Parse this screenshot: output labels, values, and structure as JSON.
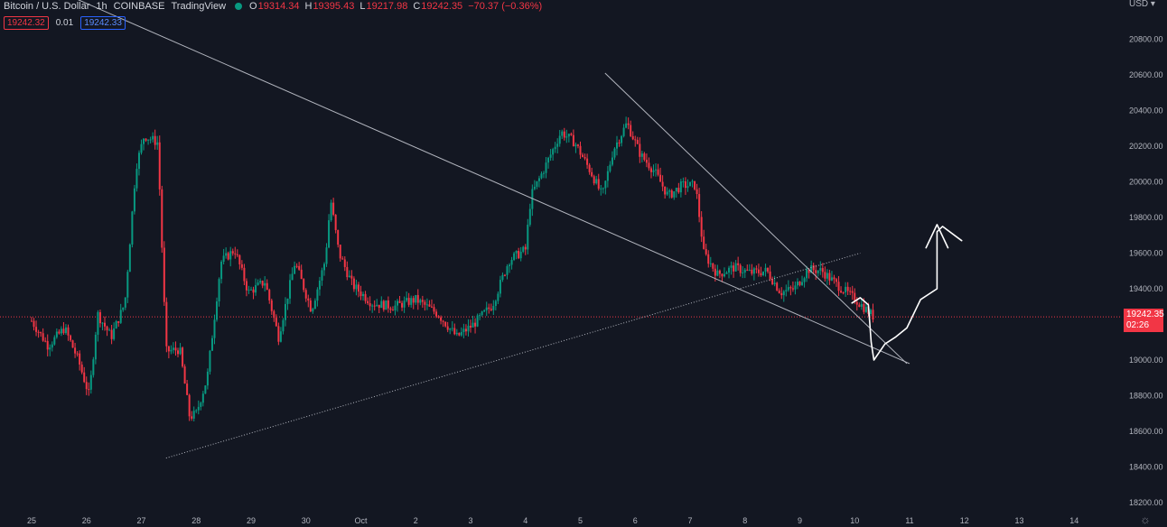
{
  "legend": {
    "symbol": "Bitcoin / U.S. Dollar",
    "interval": "1h",
    "exchange": "COINBASE",
    "source": "TradingView",
    "open_key": "O",
    "open": "19314.34",
    "high_key": "H",
    "high": "19395.43",
    "low_key": "L",
    "low": "19217.98",
    "close_key": "C",
    "close": "19242.35",
    "change": "−70.37 (−0.36%)"
  },
  "quote": {
    "sell": "19242.32",
    "spread": "0.01",
    "buy": "19242.33"
  },
  "currency_label": "USD ▾",
  "last_price": {
    "price": "19242.35",
    "countdown": "02:26"
  },
  "settings_icon_glyph": "☼",
  "colors": {
    "background": "#131722",
    "up": "#089981",
    "down": "#f23645",
    "trendline": "#b2b5be",
    "drawing": "#ffffff",
    "axis_text": "#b2b5be"
  },
  "chart_data": {
    "type": "candlestick",
    "title": "",
    "xlabel": "",
    "ylabel": "",
    "ylim": [
      18200,
      20980
    ],
    "y_ticks": [
      "18200.00",
      "18400.00",
      "18600.00",
      "18800.00",
      "19000.00",
      "19200.00",
      "19400.00",
      "19600.00",
      "19800.00",
      "20000.00",
      "20200.00",
      "20400.00",
      "20600.00",
      "20800.00"
    ],
    "x_ticks": [
      "25",
      "26",
      "27",
      "28",
      "29",
      "30",
      "Oct",
      "2",
      "3",
      "4",
      "5",
      "6",
      "7",
      "8",
      "9",
      "10",
      "11",
      "12",
      "13",
      "14"
    ],
    "grid": false,
    "last_price_line": 19242.35,
    "price_path": [
      {
        "day": 25.0,
        "price": 19220
      },
      {
        "day": 25.3,
        "price": 19080
      },
      {
        "day": 25.6,
        "price": 19180
      },
      {
        "day": 25.85,
        "price": 19000
      },
      {
        "day": 26.05,
        "price": 18800
      },
      {
        "day": 26.2,
        "price": 19260
      },
      {
        "day": 26.45,
        "price": 19130
      },
      {
        "day": 26.7,
        "price": 19320
      },
      {
        "day": 26.9,
        "price": 20080
      },
      {
        "day": 27.05,
        "price": 20260
      },
      {
        "day": 27.3,
        "price": 20220
      },
      {
        "day": 27.45,
        "price": 19050
      },
      {
        "day": 27.7,
        "price": 19060
      },
      {
        "day": 27.88,
        "price": 18680
      },
      {
        "day": 28.0,
        "price": 18700
      },
      {
        "day": 28.2,
        "price": 18900
      },
      {
        "day": 28.45,
        "price": 19550
      },
      {
        "day": 28.7,
        "price": 19620
      },
      {
        "day": 28.95,
        "price": 19380
      },
      {
        "day": 29.25,
        "price": 19440
      },
      {
        "day": 29.5,
        "price": 19130
      },
      {
        "day": 29.8,
        "price": 19550
      },
      {
        "day": 30.1,
        "price": 19280
      },
      {
        "day": 30.35,
        "price": 19560
      },
      {
        "day": 30.45,
        "price": 19900
      },
      {
        "day": 30.6,
        "price": 19600
      },
      {
        "day": 30.85,
        "price": 19420
      },
      {
        "day": 31.2,
        "price": 19320
      },
      {
        "day": 31.6,
        "price": 19300
      },
      {
        "day": 32.0,
        "price": 19340
      },
      {
        "day": 32.4,
        "price": 19260
      },
      {
        "day": 32.75,
        "price": 19130
      },
      {
        "day": 33.05,
        "price": 19200
      },
      {
        "day": 33.4,
        "price": 19310
      },
      {
        "day": 33.7,
        "price": 19560
      },
      {
        "day": 34.0,
        "price": 19620
      },
      {
        "day": 34.1,
        "price": 19920
      },
      {
        "day": 34.35,
        "price": 20080
      },
      {
        "day": 34.65,
        "price": 20280
      },
      {
        "day": 34.9,
        "price": 20220
      },
      {
        "day": 35.2,
        "price": 20050
      },
      {
        "day": 35.4,
        "price": 19920
      },
      {
        "day": 35.6,
        "price": 20180
      },
      {
        "day": 35.85,
        "price": 20330
      },
      {
        "day": 36.1,
        "price": 20150
      },
      {
        "day": 36.35,
        "price": 20060
      },
      {
        "day": 36.6,
        "price": 19920
      },
      {
        "day": 36.85,
        "price": 19980
      },
      {
        "day": 37.1,
        "price": 19980
      },
      {
        "day": 37.25,
        "price": 19600
      },
      {
        "day": 37.5,
        "price": 19480
      },
      {
        "day": 37.8,
        "price": 19520
      },
      {
        "day": 38.1,
        "price": 19490
      },
      {
        "day": 38.4,
        "price": 19500
      },
      {
        "day": 38.65,
        "price": 19380
      },
      {
        "day": 38.9,
        "price": 19400
      },
      {
        "day": 39.15,
        "price": 19510
      },
      {
        "day": 39.4,
        "price": 19500
      },
      {
        "day": 39.65,
        "price": 19430
      },
      {
        "day": 39.85,
        "price": 19380
      },
      {
        "day": 40.05,
        "price": 19330
      },
      {
        "day": 40.35,
        "price": 19242
      }
    ],
    "drawings": {
      "upper_trendline": [
        {
          "day": 24.6,
          "price": 21190
        },
        {
          "day": 41.0,
          "price": 18980
        }
      ],
      "lower_trendline": [
        {
          "day": 27.45,
          "price": 18450
        },
        {
          "day": 40.1,
          "price": 19600
        }
      ],
      "right_trendline": [
        {
          "day": 35.45,
          "price": 20610
        },
        {
          "day": 40.95,
          "price": 18980
        }
      ],
      "projection_path": [
        {
          "day": 39.95,
          "price": 19320
        },
        {
          "day": 40.1,
          "price": 19350
        },
        {
          "day": 40.25,
          "price": 19310
        },
        {
          "day": 40.3,
          "price": 19100
        },
        {
          "day": 40.35,
          "price": 19000
        },
        {
          "day": 40.55,
          "price": 19090
        },
        {
          "day": 40.75,
          "price": 19130
        },
        {
          "day": 40.95,
          "price": 19180
        },
        {
          "day": 41.2,
          "price": 19340
        },
        {
          "day": 41.5,
          "price": 19400
        },
        {
          "day": 41.5,
          "price": 19720
        },
        {
          "day": 41.6,
          "price": 19750
        },
        {
          "day": 41.95,
          "price": 19670
        }
      ],
      "arrow_head": [
        {
          "day": 41.3,
          "price": 19630
        },
        {
          "day": 41.5,
          "price": 19760
        },
        {
          "day": 41.7,
          "price": 19630
        }
      ]
    }
  }
}
